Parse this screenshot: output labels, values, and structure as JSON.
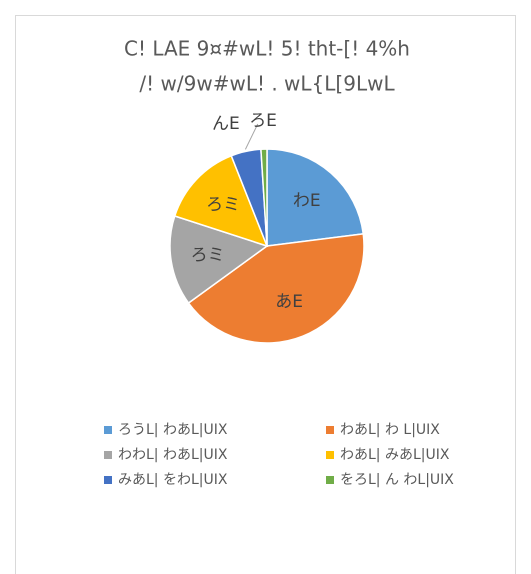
{
  "chart_data": {
    "type": "pie",
    "title": [
      "C! LAE 9¤#wL! 5! tht-[! 4%h",
      "/! w/9w#wL! . wL{L[9LwL"
    ],
    "categories": [
      "ろうL| わあL|UIX",
      "わあL| わ L|UIX",
      "わわL| わあL|UIX",
      "わあL| みあL|UIX",
      "みあL| をわL|UIX",
      "をろL| ん わL|UIX"
    ],
    "values": [
      23,
      42,
      15,
      14,
      5,
      1
    ],
    "value_labels": [
      "わE",
      "あE",
      "ろミ",
      "ろミ",
      "んE",
      "ろE"
    ],
    "colors": [
      "#5b9bd5",
      "#ed7d31",
      "#a5a5a5",
      "#ffc000",
      "#4472c4",
      "#70ad47"
    ],
    "legend": "bottom"
  }
}
